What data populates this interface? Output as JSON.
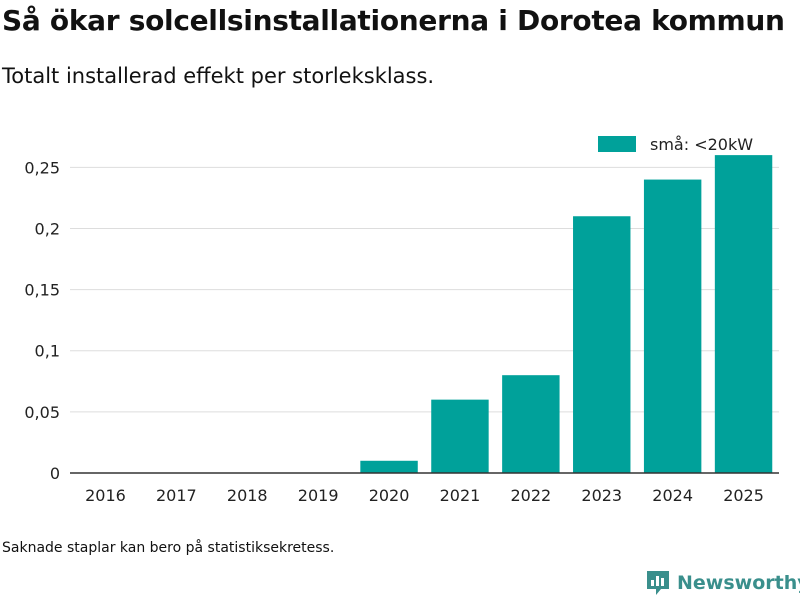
{
  "title": "Så ökar solcellsinstallationerna i Dorotea kommun",
  "subtitle": "Totalt installerad effekt per storleksklass.",
  "footnote": "Saknade staplar kan bero på statistiksekretess.",
  "brand": {
    "name": "Newsworthy",
    "logo_icon": "newsworthy-logo-icon"
  },
  "colors": {
    "bar": "#00a19a",
    "grid": "#dddddd",
    "axis": "#333333",
    "brand": "#3a8f8c"
  },
  "chart_data": {
    "type": "bar",
    "categories": [
      "2016",
      "2017",
      "2018",
      "2019",
      "2020",
      "2021",
      "2022",
      "2023",
      "2024",
      "2025"
    ],
    "series": [
      {
        "name": "små: <20kW",
        "values": [
          0,
          0,
          0,
          0,
          0.01,
          0.06,
          0.08,
          0.21,
          0.24,
          0.26
        ]
      }
    ],
    "yticks": [
      0,
      0.05,
      0.1,
      0.15,
      0.2,
      0.25
    ],
    "ytick_labels": [
      "0",
      "0,05",
      "0,1",
      "0,15",
      "0,2",
      "0,25"
    ],
    "ylim": [
      0,
      0.265
    ],
    "xlabel": "",
    "ylabel": "",
    "legend_position": "top-right",
    "grid": true
  }
}
